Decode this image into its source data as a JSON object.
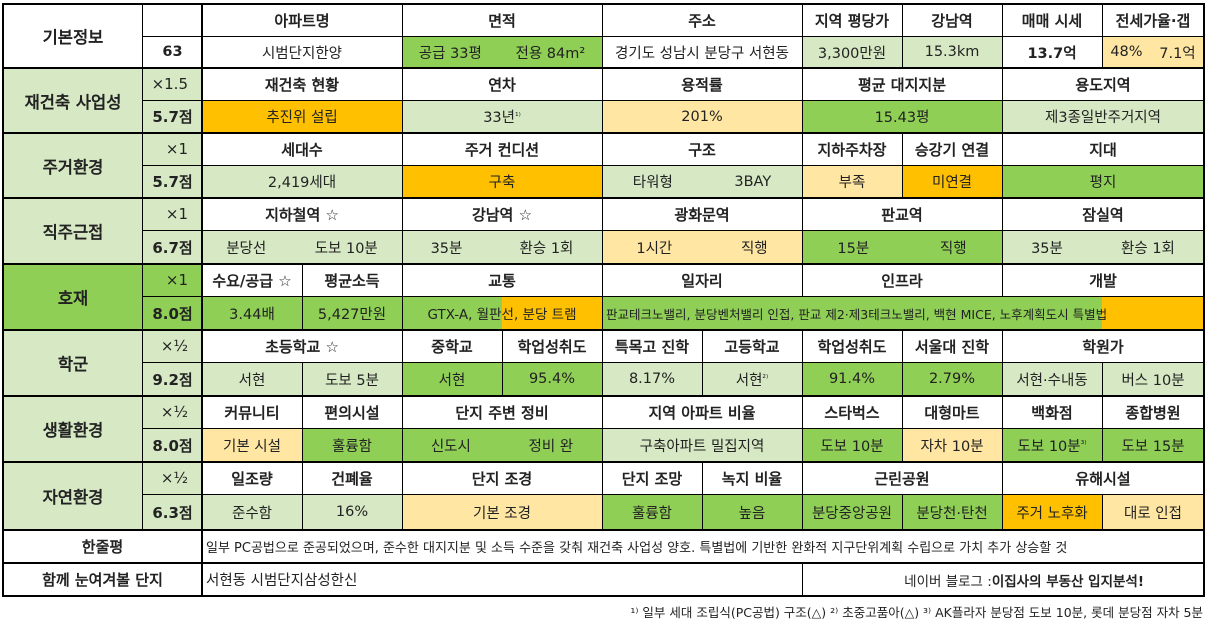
{
  "colors": {
    "white": "#ffffff",
    "light_green": "#d7e9c4",
    "green": "#8fcf55",
    "light_yellow": "#ffe7a3",
    "orange": "#ffc000"
  },
  "basic": {
    "label": "기본정보",
    "number": "63",
    "headers": [
      "아파트명",
      "면적",
      "주소",
      "지역 평당가",
      "강남역",
      "매매 시세",
      "전세가율·갭"
    ],
    "values": [
      "시범단지한양",
      "공급 33평",
      "전용 84m²",
      "경기도 성남시 분당구 서현동",
      "3,300만원",
      "15.3km",
      "13.7억",
      "48%",
      "7.1억"
    ]
  },
  "sections": [
    {
      "name": "재건축 사업성",
      "multiplier": "×1.5",
      "score": "5.7점",
      "headers": [
        "재건축 현황",
        "연차",
        "용적률",
        "평균 대지지분",
        "용도지역"
      ],
      "values": [
        "추진위 설립",
        "33년",
        "¹⁾",
        "201%",
        "15.43평",
        "제3종일반주거지역"
      ]
    },
    {
      "name": "주거환경",
      "multiplier": "×1",
      "score": "5.7점",
      "headers": [
        "세대수",
        "주거 컨디션",
        "구조",
        "지하주차장",
        "승강기 연결",
        "지대"
      ],
      "values": [
        "2,419세대",
        "구축",
        "타워형",
        "3BAY",
        "부족",
        "미연결",
        "평지"
      ]
    },
    {
      "name": "직주근접",
      "multiplier": "×1",
      "score": "6.7점",
      "headers": [
        "지하철역 ☆",
        "강남역 ☆",
        "광화문역",
        "판교역",
        "잠실역"
      ],
      "values": [
        "분당선",
        "도보 10분",
        "35분",
        "환승 1회",
        "1시간",
        "직행",
        "15분",
        "직행",
        "35분",
        "환승 1회"
      ]
    },
    {
      "name": "호재",
      "multiplier": "×1",
      "score": "8.0점",
      "headers": [
        "수요/공급 ☆",
        "평균소득",
        "교통",
        "일자리",
        "인프라",
        "개발"
      ],
      "values": [
        "3.44배",
        "5,427만원",
        "GTX-A, 월판선, 분당 트램",
        "판교테크노밸리, 분당벤처밸리 인접, 판교 제2·제3테크노밸리, 백현 MICE, 노후계획도시 특별법"
      ]
    },
    {
      "name": "학군",
      "multiplier": "×½",
      "score": "9.2점",
      "headers": [
        "초등학교 ☆",
        "중학교",
        "학업성취도",
        "특목고 진학",
        "고등학교",
        "학업성취도",
        "서울대 진학",
        "학원가"
      ],
      "values": [
        "서현",
        "도보 5분",
        "서현",
        "95.4%",
        "8.17%",
        "서현",
        "²⁾",
        "91.4%",
        "2.79%",
        "서현·수내동",
        "버스 10분"
      ]
    },
    {
      "name": "생활환경",
      "multiplier": "×½",
      "score": "8.0점",
      "headers": [
        "커뮤니티",
        "편의시설",
        "단지 주변 정비",
        "지역 아파트 비율",
        "스타벅스",
        "대형마트",
        "백화점",
        "종합병원"
      ],
      "values": [
        "기본 시설",
        "훌륭함",
        "신도시",
        "정비 완",
        "구축아파트 밀집지역",
        "도보 10분",
        "자차 10분",
        "도보 10분",
        "³⁾",
        "도보 15분"
      ]
    },
    {
      "name": "자연환경",
      "multiplier": "×½",
      "score": "6.3점",
      "headers": [
        "일조량",
        "건폐율",
        "단지 조경",
        "단지 조망",
        "녹지 비율",
        "근린공원",
        "유해시설"
      ],
      "values": [
        "준수함",
        "16%",
        "기본 조경",
        "훌륭함",
        "높음",
        "분당중앙공원",
        "분당천·탄천",
        "주거 노후화",
        "대로 인접"
      ]
    }
  ],
  "summary": {
    "label": "한줄평",
    "text": "일부 PC공법으로 준공되었으며, 준수한 대지지분 및 소득 수준을 갖춰 재건축 사업성 양호. 특별법에 기반한 완화적 지구단위계획 수립으로 가치 추가 상승할 것"
  },
  "related": {
    "label": "함께 눈여겨볼 단지",
    "text": "서현동 시범단지삼성한신",
    "blog": "네이버 블로그 : ",
    "blog_bold": "이집사의 부동산 입지분석!"
  },
  "footnote": "¹⁾ 일부 세대 조립식(PC공법) 구조(△) ²⁾ 초중고품아(△) ³⁾ AK플라자 분당점 도보 10분, 롯데 분당점 자차 5분"
}
